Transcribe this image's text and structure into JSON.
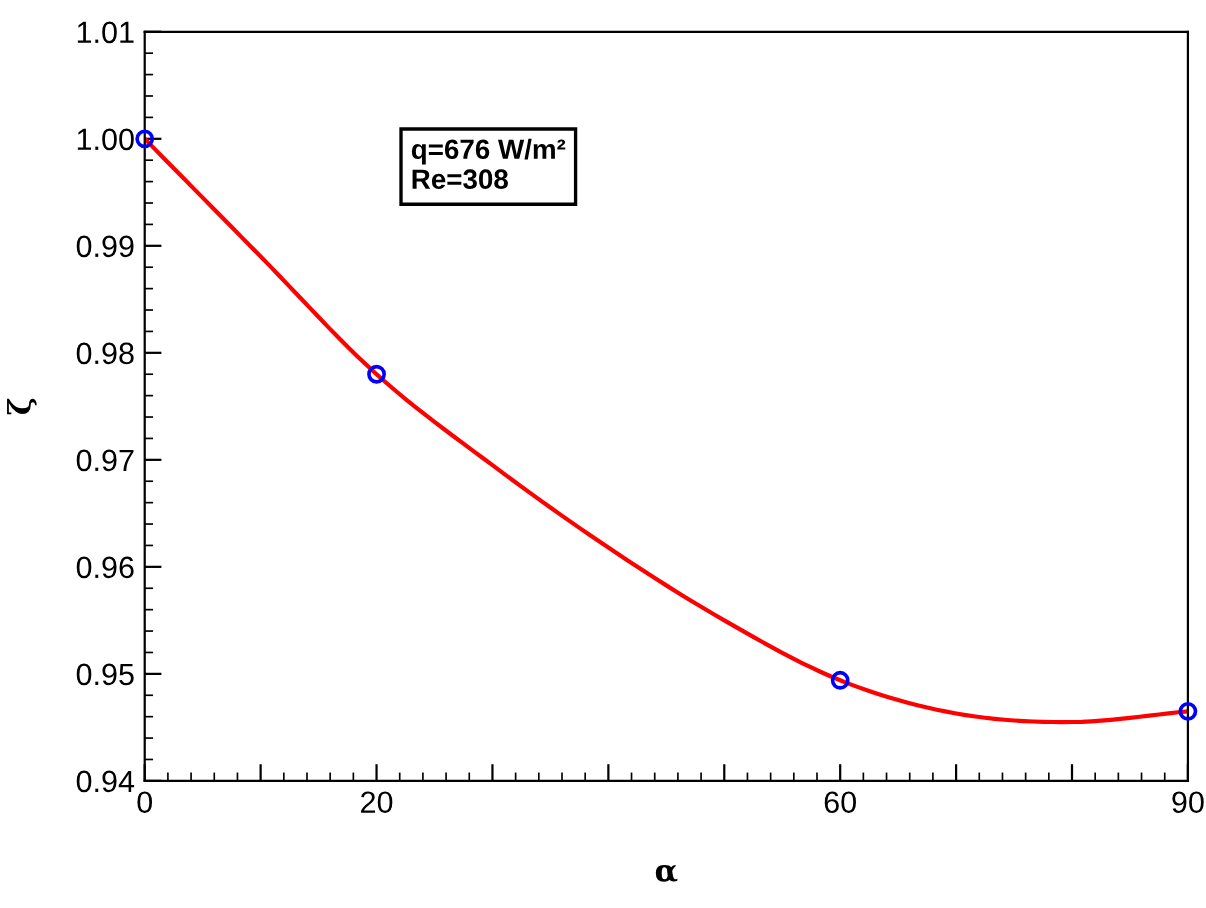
{
  "chart_data": {
    "type": "scatter",
    "xlabel": "α",
    "ylabel": "ζ",
    "annotations": [
      "q=676 W/m²\nRe=308"
    ],
    "series": [
      {
        "color": "#0000ff",
        "marker": "circle",
        "x": [
          0,
          20,
          60,
          90
        ],
        "values": [
          1.0,
          0.978,
          0.9494,
          0.9465
        ]
      },
      {
        "type": "line",
        "color": "#ff0000",
        "marker": "none",
        "line_style": "solid",
        "x": [
          0,
          10,
          20,
          30,
          40,
          50,
          60,
          70,
          80,
          90
        ],
        "values": [
          1.0,
          0.989,
          0.978,
          0.9695,
          0.9618,
          0.955,
          0.9494,
          0.9463,
          0.9455,
          0.9465
        ]
      }
    ],
    "xlim": [
      0,
      90
    ],
    "xticks": [
      0,
      {
        "value": 10,
        "label": null
      },
      20,
      {
        "value": 30,
        "label": null
      },
      {
        "value": 40,
        "label": null
      },
      {
        "value": 50,
        "label": null
      },
      60,
      {
        "value": 70,
        "label": null
      },
      {
        "value": 80,
        "label": null
      },
      90
    ],
    "ylim": [
      0.94,
      1.01
    ],
    "yticks": [
      0.94,
      0.95,
      0.96,
      0.97,
      0.98,
      0.99,
      "1.00",
      1.01
    ],
    "grid": false,
    "legend": false
  }
}
